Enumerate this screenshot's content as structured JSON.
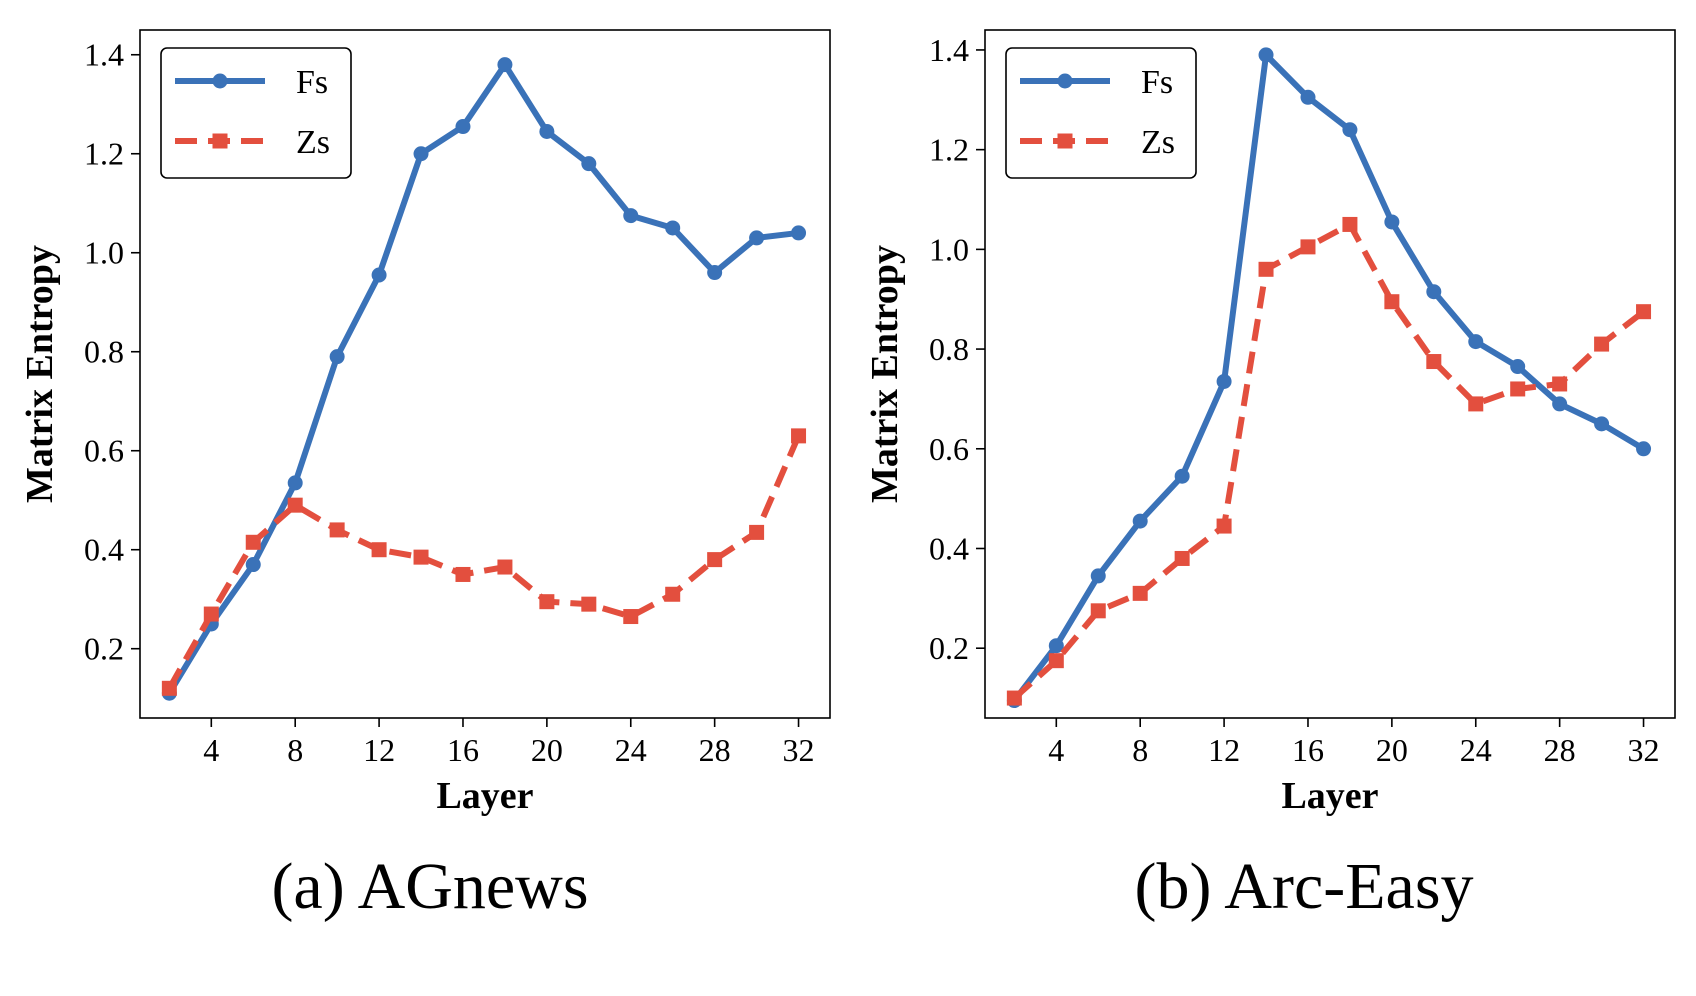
{
  "colors": {
    "fs": "#3a72b8",
    "zs": "#e34f3e",
    "axis": "#000000",
    "background": "#ffffff"
  },
  "chart_data": [
    {
      "type": "line",
      "caption": "(a) AGnews",
      "xlabel": "Layer",
      "ylabel": "Matrix Entropy",
      "xlim": [
        0.6,
        33.5
      ],
      "ylim": [
        0.06,
        1.45
      ],
      "xticks": [
        4,
        8,
        12,
        16,
        20,
        24,
        28,
        32
      ],
      "yticks": [
        0.2,
        0.4,
        0.6,
        0.8,
        1.0,
        1.2,
        1.4
      ],
      "ytick_labels": [
        "0.2",
        "0.4",
        "0.6",
        "0.8",
        "1.0",
        "1.2",
        "1.4"
      ],
      "legend": "top-left",
      "x": [
        2,
        4,
        6,
        8,
        10,
        12,
        14,
        16,
        18,
        20,
        22,
        24,
        26,
        28,
        30,
        32
      ],
      "series": [
        {
          "name": "Fs",
          "marker": "circle",
          "dash": "solid",
          "values": [
            0.11,
            0.25,
            0.37,
            0.535,
            0.79,
            0.955,
            1.2,
            1.255,
            1.38,
            1.245,
            1.18,
            1.075,
            1.05,
            0.96,
            1.03,
            1.04
          ]
        },
        {
          "name": "Zs",
          "marker": "square",
          "dash": "dashed",
          "values": [
            0.12,
            0.27,
            0.415,
            0.49,
            0.44,
            0.4,
            0.385,
            0.35,
            0.365,
            0.295,
            0.29,
            0.265,
            0.31,
            0.38,
            0.435,
            0.63
          ]
        }
      ]
    },
    {
      "type": "line",
      "caption": "(b) Arc-Easy",
      "xlabel": "Layer",
      "ylabel": "Matrix Entropy",
      "xlim": [
        0.6,
        33.5
      ],
      "ylim": [
        0.06,
        1.44
      ],
      "xticks": [
        4,
        8,
        12,
        16,
        20,
        24,
        28,
        32
      ],
      "yticks": [
        0.2,
        0.4,
        0.6,
        0.8,
        1.0,
        1.2,
        1.4
      ],
      "ytick_labels": [
        "0.2",
        "0.4",
        "0.6",
        "0.8",
        "1.0",
        "1.2",
        "1.4"
      ],
      "legend": "top-left",
      "x": [
        2,
        4,
        6,
        8,
        10,
        12,
        14,
        16,
        18,
        20,
        22,
        24,
        26,
        28,
        30,
        32
      ],
      "series": [
        {
          "name": "Fs",
          "marker": "circle",
          "dash": "solid",
          "values": [
            0.095,
            0.205,
            0.345,
            0.455,
            0.545,
            0.735,
            1.39,
            1.305,
            1.24,
            1.055,
            0.915,
            0.815,
            0.765,
            0.69,
            0.65,
            0.6
          ]
        },
        {
          "name": "Zs",
          "marker": "square",
          "dash": "dashed",
          "values": [
            0.1,
            0.175,
            0.275,
            0.31,
            0.38,
            0.445,
            0.96,
            1.005,
            1.05,
            0.895,
            0.775,
            0.69,
            0.72,
            0.73,
            0.81,
            0.875
          ]
        }
      ]
    }
  ]
}
